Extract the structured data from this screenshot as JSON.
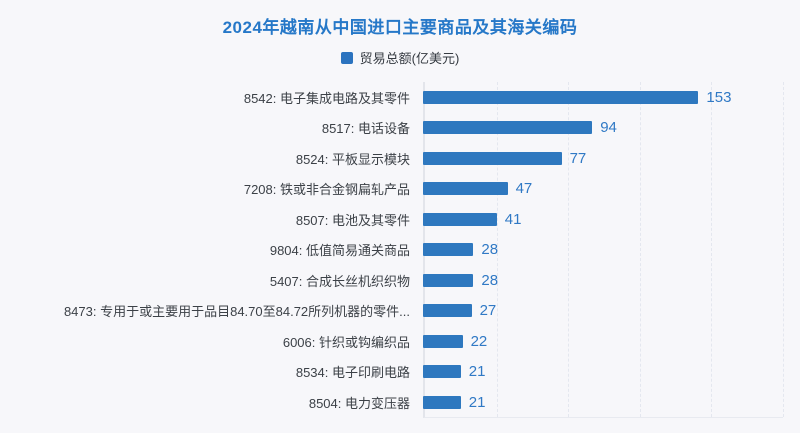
{
  "chart_data": {
    "type": "bar",
    "orientation": "horizontal",
    "title": "2024年越南从中国进口主要商品及其海关编码",
    "legend": [
      "贸易总额(亿美元)"
    ],
    "categories": [
      "8542: 电子集成电路及其零件",
      "8517: 电话设备",
      "8524: 平板显示模块",
      "7208: 铁或非合金钢扁轧产品",
      "8507: 电池及其零件",
      "9804: 低值简易通关商品",
      "5407: 合成长丝机织织物",
      "8473: 专用于或主要用于品目84.70至84.72所列机器的零件...",
      "6006: 针织或钩编织品",
      "8534: 电子印刷电路",
      "8504: 电力变压器"
    ],
    "values": [
      153,
      94,
      77,
      47,
      41,
      28,
      28,
      27,
      22,
      21,
      21
    ],
    "xlabel": "",
    "ylabel": "",
    "xlim": [
      0,
      200
    ],
    "grid": true,
    "gridline_interval": 40,
    "gridline_style": "dashed-vertical",
    "value_labels": true,
    "legend_position": "top-center",
    "colors": {
      "bar": "#2e78bf",
      "title": "#2678c8",
      "value_label": "#3079c5",
      "category_label": "#3c4147",
      "legend_marker": "#2b73bf",
      "gridline": "#e4e7ef",
      "axis_line": "#e3e5eb",
      "background": "#f7f7fa"
    }
  }
}
